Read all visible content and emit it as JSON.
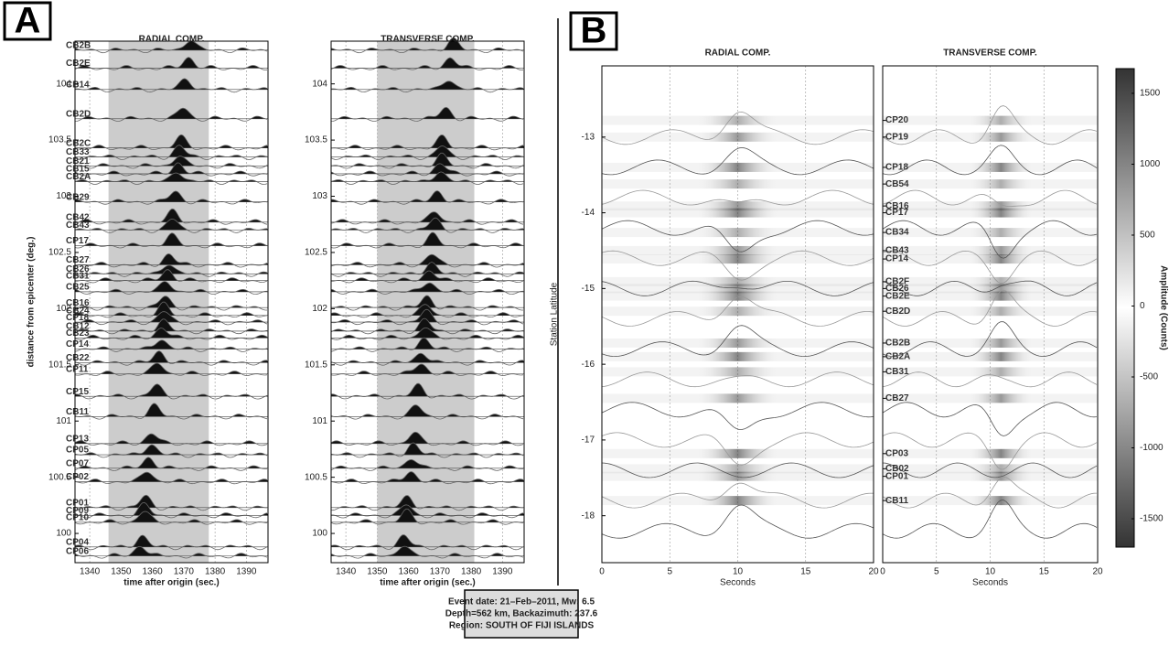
{
  "panels": [
    "A",
    "B"
  ],
  "event_info": [
    "Event date: 21–Feb–2011, Mw: 6.5",
    "Depth=562 km, Backazimuth: 237.6",
    "Region: SOUTH OF FIJI ISLANDS"
  ],
  "chart_data": [
    {
      "type": "seismogram",
      "title": "RADIAL COMP.",
      "x_label": "time after origin (sec.)",
      "y_label": "distance from epicenter (deg.)",
      "xlim": [
        1335.3,
        1396.9
      ],
      "xticks": [
        1340,
        1350,
        1360,
        1370,
        1380,
        1390
      ],
      "ylim": [
        99.74,
        104.38
      ],
      "yticks": [
        100,
        100.5,
        101,
        101.5,
        102,
        102.5,
        103,
        103.5,
        104
      ],
      "window": [
        1346,
        1378
      ],
      "stations": [
        {
          "name": "CB2B",
          "distance": 104.3
        },
        {
          "name": "CB2E",
          "distance": 104.14
        },
        {
          "name": "CB14",
          "distance": 103.95
        },
        {
          "name": "CB2D",
          "distance": 103.69
        },
        {
          "name": "CB2C",
          "distance": 103.43
        },
        {
          "name": "CB33",
          "distance": 103.35
        },
        {
          "name": "CB21",
          "distance": 103.27
        },
        {
          "name": "CB15",
          "distance": 103.2
        },
        {
          "name": "CB2A",
          "distance": 103.13
        },
        {
          "name": "CB29",
          "distance": 102.95
        },
        {
          "name": "CB42",
          "distance": 102.77
        },
        {
          "name": "CB43",
          "distance": 102.7
        },
        {
          "name": "CP17",
          "distance": 102.56
        },
        {
          "name": "CB27",
          "distance": 102.39
        },
        {
          "name": "CB26",
          "distance": 102.31
        },
        {
          "name": "CB31",
          "distance": 102.25
        },
        {
          "name": "CB25",
          "distance": 102.15
        },
        {
          "name": "CB16",
          "distance": 102.01
        },
        {
          "name": "CB24",
          "distance": 101.94
        },
        {
          "name": "CP18",
          "distance": 101.88
        },
        {
          "name": "CB12",
          "distance": 101.8
        },
        {
          "name": "CB23",
          "distance": 101.74
        },
        {
          "name": "CP14",
          "distance": 101.64
        },
        {
          "name": "CB22",
          "distance": 101.52
        },
        {
          "name": "CP11",
          "distance": 101.42
        },
        {
          "name": "CP15",
          "distance": 101.22
        },
        {
          "name": "CB11",
          "distance": 101.04
        },
        {
          "name": "CP13",
          "distance": 100.8
        },
        {
          "name": "CP05",
          "distance": 100.7
        },
        {
          "name": "CP07",
          "distance": 100.58
        },
        {
          "name": "CP02",
          "distance": 100.46
        },
        {
          "name": "CP01",
          "distance": 100.23
        },
        {
          "name": "CP09",
          "distance": 100.16
        },
        {
          "name": "CP10",
          "distance": 100.1
        },
        {
          "name": "CP04",
          "distance": 99.88
        },
        {
          "name": "CP06",
          "distance": 99.8
        }
      ]
    },
    {
      "type": "seismogram",
      "title": "TRANSVERSE COMP.",
      "x_label": "time after origin (sec.)",
      "xlim": [
        1335.3,
        1396.9
      ],
      "xticks": [
        1340,
        1350,
        1360,
        1370,
        1380,
        1390
      ],
      "ylim": [
        99.74,
        104.38
      ],
      "yticks": [
        100,
        100.5,
        101,
        101.5,
        102,
        102.5,
        103,
        103.5,
        104
      ],
      "window": [
        1350,
        1381
      ]
    },
    {
      "type": "heatmap",
      "title": "RADIAL COMP.",
      "x_label": "Seconds",
      "y_label": "Station Latitude",
      "xlim": [
        0,
        20
      ],
      "xticks": [
        0,
        5,
        10,
        15,
        20
      ],
      "ylim": [
        -18.62,
        -12.06
      ],
      "yticks": [
        -18,
        -17,
        -16,
        -15,
        -14,
        -13
      ]
    },
    {
      "type": "heatmap",
      "title": "TRANSVERSE COMP.",
      "x_label": "Seconds",
      "xlim": [
        0,
        20
      ],
      "xticks": [
        0,
        5,
        10,
        15,
        20
      ],
      "ylim": [
        -18.62,
        -12.06
      ],
      "stations": [
        {
          "name": "CP20",
          "latitude": -12.78
        },
        {
          "name": "CP19",
          "latitude": -13.0
        },
        {
          "name": "CP18",
          "latitude": -13.4
        },
        {
          "name": "CB54",
          "latitude": -13.62
        },
        {
          "name": "CB16",
          "latitude": -13.91
        },
        {
          "name": "CP17",
          "latitude": -14.0
        },
        {
          "name": "CB34",
          "latitude": -14.26
        },
        {
          "name": "CB43",
          "latitude": -14.5
        },
        {
          "name": "CP14",
          "latitude": -14.61
        },
        {
          "name": "CB2F",
          "latitude": -14.91
        },
        {
          "name": "CB26",
          "latitude": -15.0
        },
        {
          "name": "CB2E",
          "latitude": -15.1
        },
        {
          "name": "CB2D",
          "latitude": -15.3
        },
        {
          "name": "CB2B",
          "latitude": -15.72
        },
        {
          "name": "CB2A",
          "latitude": -15.9
        },
        {
          "name": "CB31",
          "latitude": -16.1
        },
        {
          "name": "CB27",
          "latitude": -16.45
        },
        {
          "name": "CP03",
          "latitude": -17.18
        },
        {
          "name": "CB02",
          "latitude": -17.38
        },
        {
          "name": "CP01",
          "latitude": -17.48
        },
        {
          "name": "CB11",
          "latitude": -17.8
        }
      ],
      "colorbar": {
        "label": "Amplitude (Counts)",
        "lim": [
          -1700,
          1674
        ],
        "ticks": [
          -1500,
          -1000,
          -500,
          0,
          500,
          1000,
          1500
        ]
      }
    }
  ]
}
